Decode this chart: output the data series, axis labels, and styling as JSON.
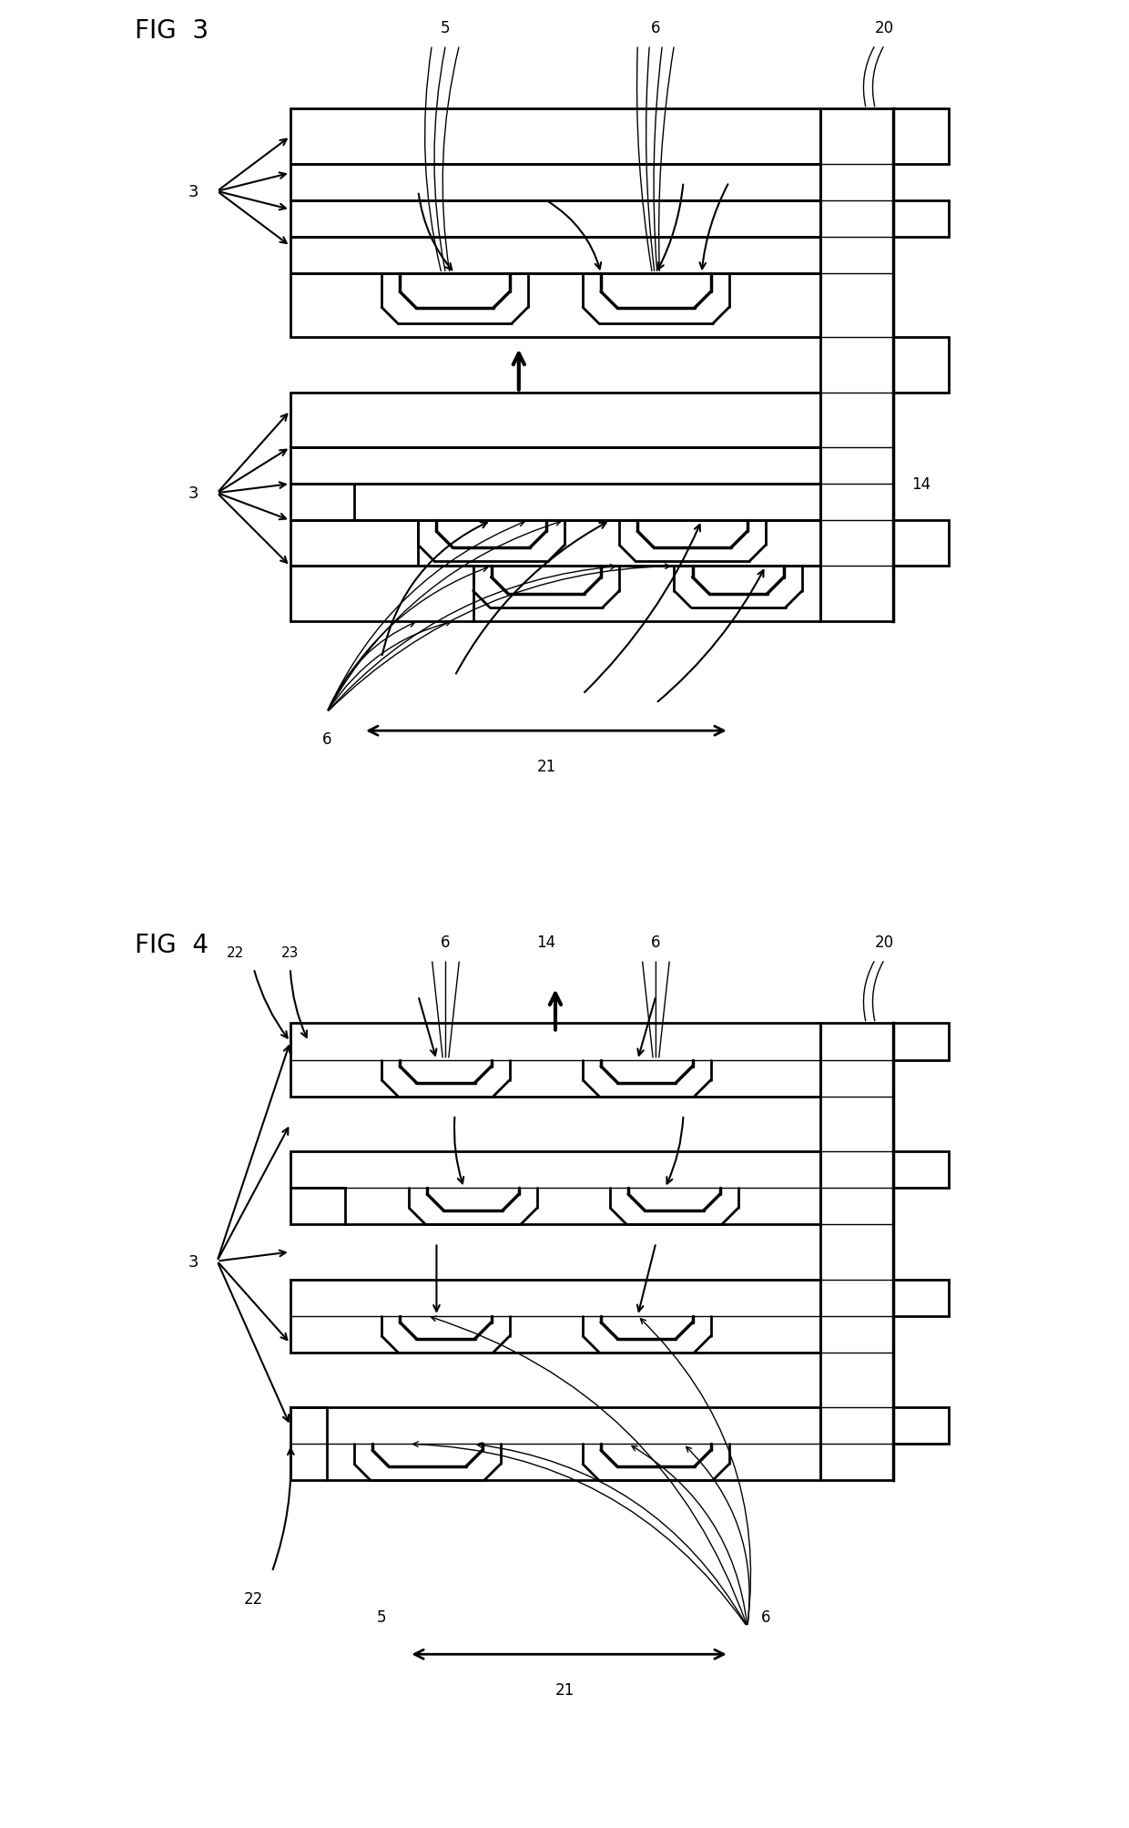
{
  "fig_width": 12.4,
  "fig_height": 20.08,
  "bg_color": "#ffffff",
  "line_color": "#000000",
  "lw_heavy": 2.5,
  "lw_med": 2.0,
  "lw_light": 1.5,
  "lw_thin": 1.0
}
